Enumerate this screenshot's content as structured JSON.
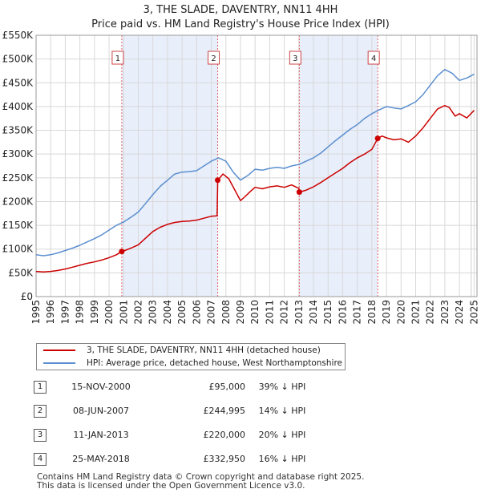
{
  "chart_data": {
    "type": "line",
    "title": "3, THE SLADE, DAVENTRY, NN11 4HH",
    "subtitle": "Price paid vs. HM Land Registry's House Price Index (HPI)",
    "xlim": [
      1995,
      2025.2
    ],
    "ylim": [
      0,
      550000
    ],
    "x_ticks": [
      "1995",
      "1996",
      "1997",
      "1998",
      "1999",
      "2000",
      "2001",
      "2002",
      "2003",
      "2004",
      "2005",
      "2006",
      "2007",
      "2008",
      "2009",
      "2010",
      "2011",
      "2012",
      "2013",
      "2014",
      "2015",
      "2016",
      "2017",
      "2018",
      "2019",
      "2020",
      "2021",
      "2022",
      "2023",
      "2024",
      "2025"
    ],
    "y_ticks": [
      {
        "value": 0,
        "label": "£0"
      },
      {
        "value": 50000,
        "label": "£50K"
      },
      {
        "value": 100000,
        "label": "£100K"
      },
      {
        "value": 150000,
        "label": "£150K"
      },
      {
        "value": 200000,
        "label": "£200K"
      },
      {
        "value": 250000,
        "label": "£250K"
      },
      {
        "value": 300000,
        "label": "£300K"
      },
      {
        "value": 350000,
        "label": "£350K"
      },
      {
        "value": 400000,
        "label": "£400K"
      },
      {
        "value": 450000,
        "label": "£450K"
      },
      {
        "value": 500000,
        "label": "£500K"
      },
      {
        "value": 550000,
        "label": "£550K"
      }
    ],
    "grid": true,
    "shaded_periods": [
      [
        2000.87,
        2007.44
      ],
      [
        2013.03,
        2018.4
      ]
    ],
    "series": [
      {
        "name": "3, THE SLADE, DAVENTRY, NN11 4HH (detached house)",
        "color": "#cc0000",
        "x": [
          1995.0,
          1995.5,
          1996.0,
          1996.5,
          1997.0,
          1997.5,
          1998.0,
          1998.5,
          1999.0,
          1999.5,
          2000.0,
          2000.5,
          2000.87,
          2001.0,
          2001.5,
          2002.0,
          2002.5,
          2003.0,
          2003.5,
          2004.0,
          2004.5,
          2005.0,
          2005.5,
          2006.0,
          2006.5,
          2007.0,
          2007.4,
          2007.44,
          2007.8,
          2008.2,
          2008.6,
          2009.0,
          2009.3,
          2009.7,
          2010.0,
          2010.5,
          2011.0,
          2011.5,
          2012.0,
          2012.5,
          2013.0,
          2013.03,
          2013.5,
          2014.0,
          2014.5,
          2015.0,
          2015.5,
          2016.0,
          2016.5,
          2017.0,
          2017.5,
          2018.0,
          2018.4,
          2018.7,
          2019.0,
          2019.5,
          2020.0,
          2020.5,
          2021.0,
          2021.5,
          2022.0,
          2022.5,
          2023.0,
          2023.3,
          2023.7,
          2024.0,
          2024.5,
          2025.0
        ],
        "values": [
          53000,
          52000,
          53000,
          55000,
          58000,
          62000,
          66000,
          70000,
          73000,
          77000,
          82000,
          88000,
          95000,
          96000,
          102000,
          109000,
          123000,
          137000,
          146000,
          152000,
          156000,
          158000,
          159000,
          161000,
          165000,
          169000,
          170000,
          244995,
          258000,
          248000,
          225000,
          202000,
          210000,
          222000,
          230000,
          227000,
          231000,
          233000,
          230000,
          235000,
          228000,
          220000,
          224000,
          231000,
          240000,
          250000,
          260000,
          270000,
          282000,
          292000,
          300000,
          310000,
          332950,
          338000,
          334000,
          330000,
          332000,
          325000,
          338000,
          355000,
          375000,
          395000,
          402000,
          398000,
          380000,
          385000,
          376000,
          392000
        ]
      },
      {
        "name": "HPI: Average price, detached house, West Northamptonshire",
        "color": "#5b8fd0",
        "x": [
          1995.0,
          1995.5,
          1996.0,
          1996.5,
          1997.0,
          1997.5,
          1998.0,
          1998.5,
          1999.0,
          1999.5,
          2000.0,
          2000.5,
          2001.0,
          2001.5,
          2002.0,
          2002.5,
          2003.0,
          2003.5,
          2004.0,
          2004.5,
          2005.0,
          2005.5,
          2006.0,
          2006.5,
          2007.0,
          2007.5,
          2008.0,
          2008.5,
          2009.0,
          2009.5,
          2010.0,
          2010.5,
          2011.0,
          2011.5,
          2012.0,
          2012.5,
          2013.0,
          2013.5,
          2014.0,
          2014.5,
          2015.0,
          2015.5,
          2016.0,
          2016.5,
          2017.0,
          2017.5,
          2018.0,
          2018.5,
          2019.0,
          2019.5,
          2020.0,
          2020.5,
          2021.0,
          2021.5,
          2022.0,
          2022.5,
          2023.0,
          2023.5,
          2024.0,
          2024.5,
          2025.0
        ],
        "values": [
          88000,
          86000,
          88000,
          92000,
          97000,
          102000,
          108000,
          115000,
          122000,
          130000,
          140000,
          150000,
          157000,
          167000,
          178000,
          196000,
          215000,
          232000,
          245000,
          258000,
          262000,
          263000,
          265000,
          275000,
          285000,
          292000,
          285000,
          262000,
          245000,
          255000,
          268000,
          266000,
          270000,
          272000,
          270000,
          275000,
          278000,
          285000,
          292000,
          302000,
          315000,
          328000,
          340000,
          352000,
          362000,
          375000,
          385000,
          393000,
          400000,
          397000,
          395000,
          402000,
          410000,
          425000,
          445000,
          465000,
          478000,
          470000,
          455000,
          460000,
          468000
        ]
      }
    ],
    "sales": [
      {
        "label": "1",
        "x": 2000.87,
        "value": 95000
      },
      {
        "label": "2",
        "x": 2007.44,
        "value": 244995
      },
      {
        "label": "3",
        "x": 2013.03,
        "value": 220000
      },
      {
        "label": "4",
        "x": 2018.4,
        "value": 332950
      }
    ]
  },
  "legend": {
    "property_label": "3, THE SLADE, DAVENTRY, NN11 4HH (detached house)",
    "hpi_label": "HPI: Average price, detached house, West Northamptonshire"
  },
  "sales_table": [
    {
      "num": "1",
      "date": "15-NOV-2000",
      "price": "£95,000",
      "diff": "39% ↓ HPI"
    },
    {
      "num": "2",
      "date": "08-JUN-2007",
      "price": "£244,995",
      "diff": "14% ↓ HPI"
    },
    {
      "num": "3",
      "date": "11-JAN-2013",
      "price": "£220,000",
      "diff": "20% ↓ HPI"
    },
    {
      "num": "4",
      "date": "25-MAY-2018",
      "price": "£332,950",
      "diff": "16% ↓ HPI"
    }
  ],
  "footer": {
    "line1": "Contains HM Land Registry data © Crown copyright and database right 2025.",
    "line2": "This data is licensed under the Open Government Licence v3.0."
  }
}
